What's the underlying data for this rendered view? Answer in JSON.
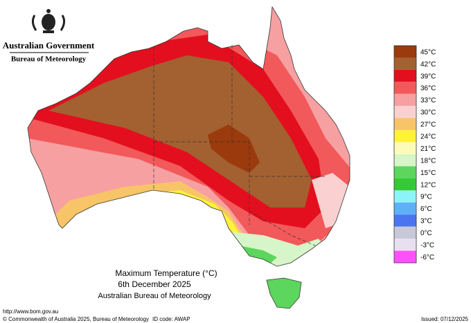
{
  "header": {
    "government": "Australian Government",
    "agency": "Bureau of Meteorology"
  },
  "title": {
    "line1": "Maximum Temperature (°C)",
    "line2": "6th December 2025",
    "line3": "Australian Bureau of Meteorology"
  },
  "legend": [
    {
      "label": "45°C",
      "color": "#9b3a0c"
    },
    {
      "label": "42°C",
      "color": "#a36030"
    },
    {
      "label": "39°C",
      "color": "#e30f1e"
    },
    {
      "label": "36°C",
      "color": "#f2595a"
    },
    {
      "label": "33°C",
      "color": "#f6a0a2"
    },
    {
      "label": "30°C",
      "color": "#fbd0d0"
    },
    {
      "label": "27°C",
      "color": "#f8c468"
    },
    {
      "label": "24°C",
      "color": "#fff238"
    },
    {
      "label": "21°C",
      "color": "#fcfcb8"
    },
    {
      "label": "18°C",
      "color": "#d6f5c8"
    },
    {
      "label": "15°C",
      "color": "#5cd65c"
    },
    {
      "label": "12°C",
      "color": "#36c936"
    },
    {
      "label": "9°C",
      "color": "#8cf4f8"
    },
    {
      "label": "6°C",
      "color": "#5fb0f8"
    },
    {
      "label": "3°C",
      "color": "#4a74f0"
    },
    {
      "label": "0°C",
      "color": "#c8c8d8"
    },
    {
      "label": "-3°C",
      "color": "#e8e0f0"
    },
    {
      "label": "-6°C",
      "color": "#ff50ff"
    }
  ],
  "footer": {
    "url": "http://www.bom.gov.au",
    "copyright": "© Commonwealth of Australia 2025, Bureau of Meteorology",
    "id_code": "ID code: AWAP",
    "issued": "Issued: 07/12/2025"
  }
}
